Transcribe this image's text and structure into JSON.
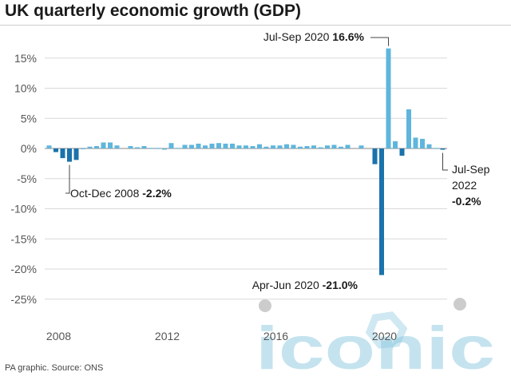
{
  "header": {
    "title": "UK quarterly economic growth (GDP)"
  },
  "footer": {
    "source": "PA graphic. Source: ONS"
  },
  "watermark": {
    "text": "iconic"
  },
  "colors": {
    "light_bar": "#5fb6dc",
    "dark_bar": "#1a73ab",
    "grid": "#d9d9d9",
    "axis": "#888888"
  },
  "chart_data": {
    "type": "bar",
    "title": "UK quarterly economic growth (GDP)",
    "xlabel": "",
    "ylabel": "",
    "ylim": [
      -27,
      18
    ],
    "y_ticks": [
      15,
      10,
      5,
      0,
      -5,
      -10,
      -15,
      -20,
      -25
    ],
    "y_tick_labels": [
      "15%",
      "10%",
      "5%",
      "0%",
      "-5%",
      "-10%",
      "-15%",
      "-20%",
      "-25%"
    ],
    "x_tick_labels": [
      {
        "label": "2008",
        "category": "2008 Q1"
      },
      {
        "label": "2012",
        "category": "2012 Q1"
      },
      {
        "label": "2016",
        "category": "2016 Q1"
      },
      {
        "label": "2020",
        "category": "2020 Q1"
      }
    ],
    "highlight_categories": [
      "2008 Q2",
      "2008 Q3",
      "2008 Q4",
      "2009 Q1",
      "2020 Q1",
      "2020 Q2",
      "2021 Q1",
      "2022 Q3"
    ],
    "categories": [
      "2008 Q1",
      "2008 Q2",
      "2008 Q3",
      "2008 Q4",
      "2009 Q1",
      "2009 Q2",
      "2009 Q3",
      "2009 Q4",
      "2010 Q1",
      "2010 Q2",
      "2010 Q3",
      "2010 Q4",
      "2011 Q1",
      "2011 Q2",
      "2011 Q3",
      "2011 Q4",
      "2012 Q1",
      "2012 Q2",
      "2012 Q3",
      "2012 Q4",
      "2013 Q1",
      "2013 Q2",
      "2013 Q3",
      "2013 Q4",
      "2014 Q1",
      "2014 Q2",
      "2014 Q3",
      "2014 Q4",
      "2015 Q1",
      "2015 Q2",
      "2015 Q3",
      "2015 Q4",
      "2016 Q1",
      "2016 Q2",
      "2016 Q3",
      "2016 Q4",
      "2017 Q1",
      "2017 Q2",
      "2017 Q3",
      "2017 Q4",
      "2018 Q1",
      "2018 Q2",
      "2018 Q3",
      "2018 Q4",
      "2019 Q1",
      "2019 Q2",
      "2019 Q3",
      "2019 Q4",
      "2020 Q1",
      "2020 Q2",
      "2020 Q3",
      "2020 Q4",
      "2021 Q1",
      "2021 Q2",
      "2021 Q3",
      "2021 Q4",
      "2022 Q1",
      "2022 Q2",
      "2022 Q3"
    ],
    "values": [
      0.5,
      -0.6,
      -1.6,
      -2.2,
      -1.9,
      -0.1,
      0.3,
      0.4,
      1.0,
      1.0,
      0.5,
      0.0,
      0.4,
      0.2,
      0.4,
      0.1,
      0.1,
      -0.2,
      0.9,
      0.1,
      0.6,
      0.6,
      0.8,
      0.5,
      0.8,
      0.9,
      0.8,
      0.8,
      0.5,
      0.5,
      0.4,
      0.7,
      0.3,
      0.5,
      0.5,
      0.7,
      0.6,
      0.3,
      0.4,
      0.5,
      0.2,
      0.5,
      0.6,
      0.3,
      0.6,
      0.0,
      0.5,
      0.0,
      -2.6,
      -21.0,
      16.6,
      1.2,
      -1.2,
      6.5,
      1.8,
      1.6,
      0.7,
      0.1,
      -0.2
    ],
    "annotations": [
      {
        "category": "2008 Q4",
        "text": "Oct-Dec 2008 ",
        "value_text": "-2.2%"
      },
      {
        "category": "2020 Q3",
        "text": "Jul-Sep 2020 ",
        "value_text": "16.6%"
      },
      {
        "category": "2020 Q2",
        "text": "Apr-Jun 2020 ",
        "value_text": "-21.0%"
      },
      {
        "category": "2022 Q3",
        "text_lines": [
          "Jul-Sep",
          "2022"
        ],
        "value_text": "-0.2%"
      }
    ]
  }
}
